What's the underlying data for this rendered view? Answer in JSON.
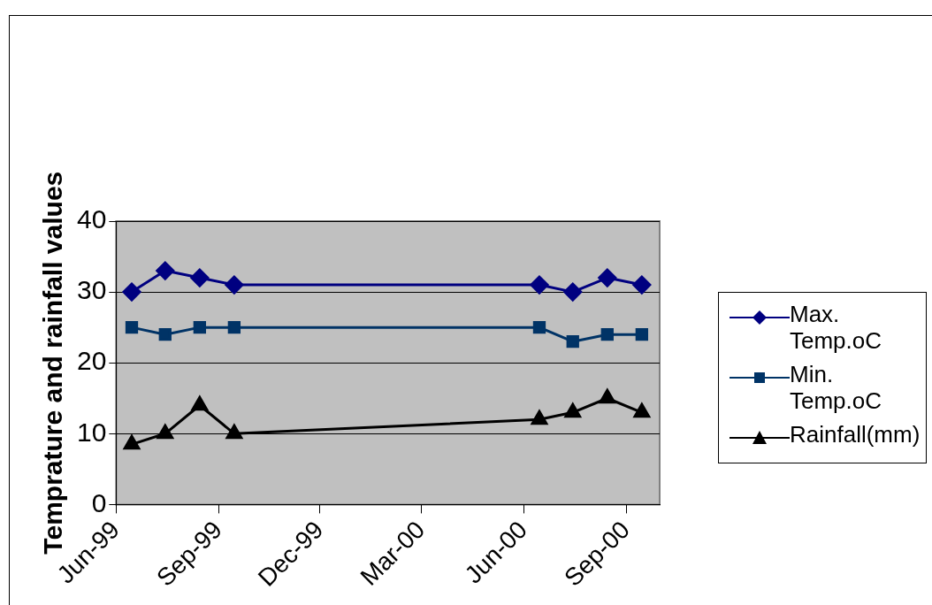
{
  "chart_data": {
    "type": "line",
    "ylabel": "Temprature and rainfall values",
    "x": [
      "1999-06-15",
      "1999-07-15",
      "1999-08-15",
      "1999-09-15",
      "2000-06-15",
      "2000-07-15",
      "2000-08-15",
      "2000-09-15"
    ],
    "series": [
      {
        "name": "Max. Temp.oC",
        "color": "#000080",
        "marker": "diamond",
        "values": [
          30,
          33,
          32,
          31,
          31,
          30,
          32,
          31
        ]
      },
      {
        "name": "Min. Temp.oC",
        "color": "#003366",
        "marker": "square",
        "values": [
          25,
          24,
          25,
          25,
          25,
          23,
          24,
          24
        ]
      },
      {
        "name": "Rainfall(mm)",
        "color": "#000000",
        "marker": "triangle",
        "values": [
          8.5,
          10,
          14,
          10,
          12,
          13,
          15,
          13
        ]
      }
    ],
    "xlim": [
      "1999-06-01",
      "2000-10-01"
    ],
    "xticks": [
      {
        "value": "1999-06-01",
        "label": "Jun-99"
      },
      {
        "value": "1999-09-01",
        "label": "Sep-99"
      },
      {
        "value": "1999-12-01",
        "label": "Dec-99"
      },
      {
        "value": "2000-03-01",
        "label": "Mar-00"
      },
      {
        "value": "2000-06-01",
        "label": "Jun-00"
      },
      {
        "value": "2000-09-01",
        "label": "Sep-00"
      }
    ],
    "ylim": [
      0,
      40
    ],
    "yticks": [
      0,
      10,
      20,
      30,
      40
    ],
    "grid": "y",
    "legend": "right",
    "line_style": "solid"
  }
}
